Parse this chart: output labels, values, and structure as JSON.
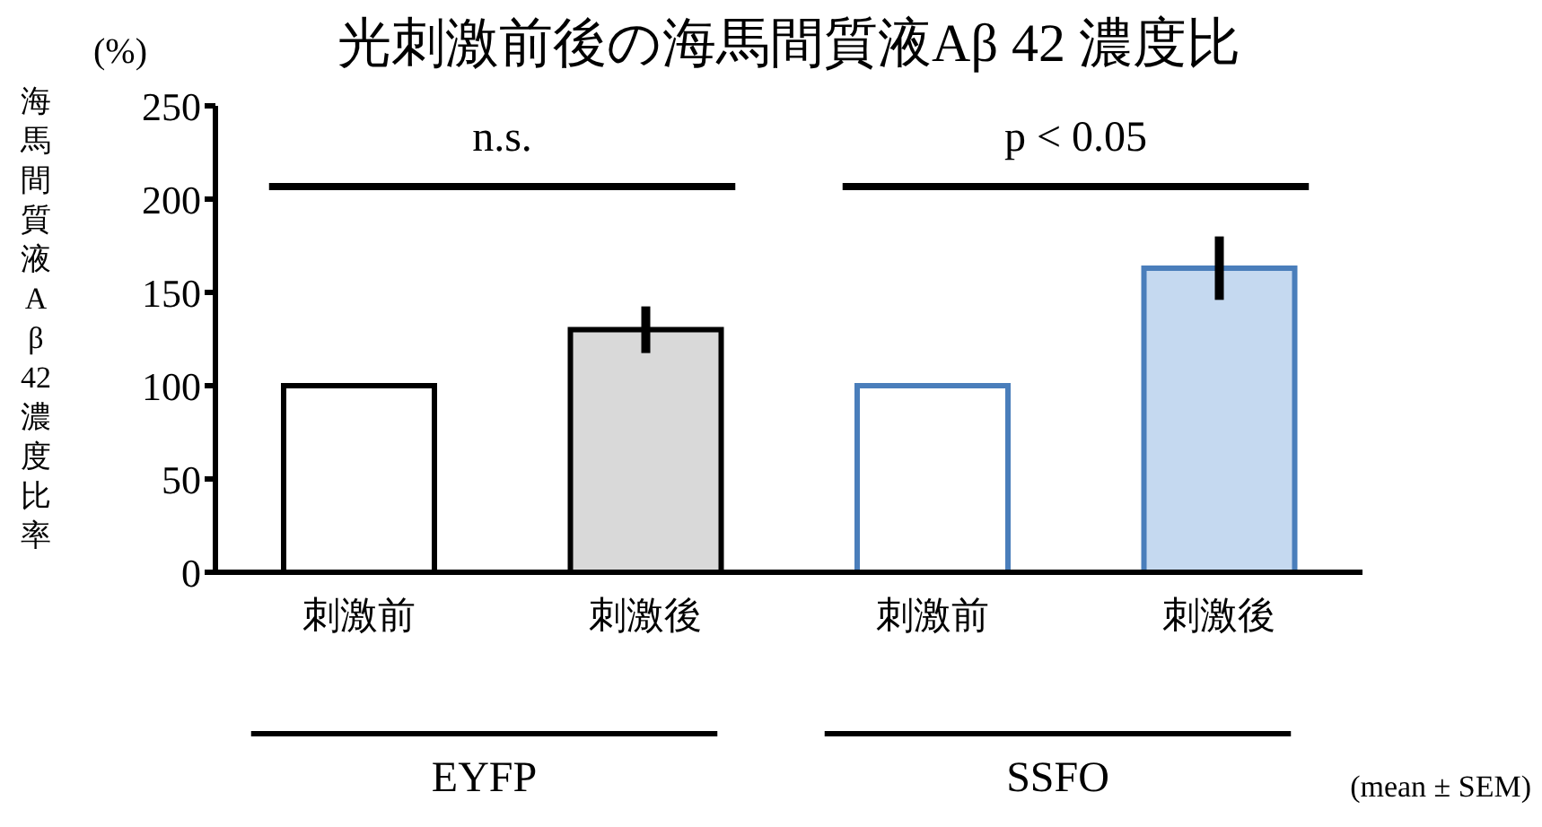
{
  "chart_data": {
    "type": "bar",
    "title": "光刺激前後の海馬間質液Aβ 42 濃度比",
    "ylabel": "海馬間質液Aβ42濃度比率",
    "categories": [
      "刺激前",
      "刺激後",
      "刺激前",
      "刺激後"
    ],
    "values": [
      100,
      130,
      100,
      163
    ],
    "errors": [
      null,
      12.5,
      null,
      17
    ],
    "colors": [
      "#ffffff",
      "#d9d9d9",
      "#ffffff",
      "#c5d9f0"
    ],
    "ylim": [
      0,
      250
    ],
    "yticks": [
      0,
      50,
      100,
      150,
      200,
      250
    ],
    "annotations": [
      "n.s.",
      "p < 0.05",
      "EYFP",
      "SSFO",
      "(%)",
      "(mean ± SEM)"
    ]
  }
}
